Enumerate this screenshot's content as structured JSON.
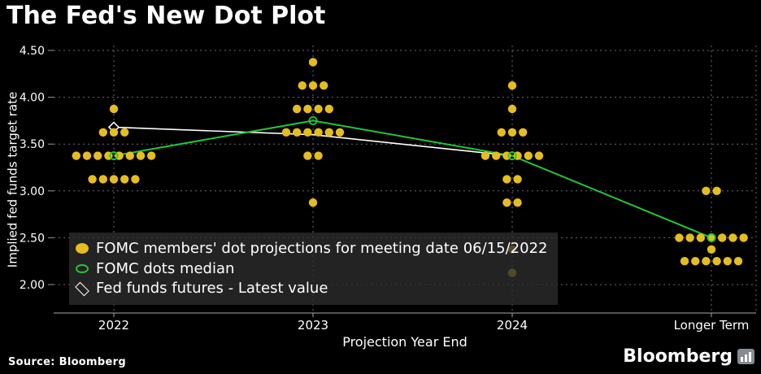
{
  "footer": {
    "source_label": "Source: Bloomberg",
    "brand": "Bloomberg",
    "brand_icon": "bar-chart-icon"
  },
  "chart_data": {
    "type": "scatter",
    "title": "The Fed's New Dot Plot",
    "xlabel": "Projection Year End",
    "ylabel": "Implied fed funds target rate",
    "categories": [
      "2022",
      "2023",
      "2024",
      "Longer Term"
    ],
    "yticks": [
      "4.50",
      "4.00",
      "3.50",
      "3.00",
      "2.50",
      "2.00"
    ],
    "ylim": [
      1.75,
      4.6
    ],
    "grid": "dashed horizontal and vertical gridlines on black background",
    "legend": {
      "position": "bottom-left overlay panel",
      "entries": [
        {
          "marker": "filled-circle",
          "color": "#e6bd20",
          "label": "FOMC members' dot projections for meeting date 06/15/2022"
        },
        {
          "marker": "open-circle",
          "color": "#1ec838",
          "label": "FOMC dots median"
        },
        {
          "marker": "open-diamond",
          "color": "#ffffff",
          "label": "Fed funds futures - Latest value"
        }
      ]
    },
    "dot_series": {
      "name": "FOMC members' dot projections for meeting date 06/15/2022",
      "color": "#e6bd20",
      "points": [
        {
          "category": "2022",
          "rate": 3.875,
          "count": 1
        },
        {
          "category": "2022",
          "rate": 3.625,
          "count": 3
        },
        {
          "category": "2022",
          "rate": 3.375,
          "count": 8
        },
        {
          "category": "2022",
          "rate": 3.125,
          "count": 5
        },
        {
          "category": "2023",
          "rate": 4.375,
          "count": 1
        },
        {
          "category": "2023",
          "rate": 4.125,
          "count": 3
        },
        {
          "category": "2023",
          "rate": 3.875,
          "count": 4
        },
        {
          "category": "2023",
          "rate": 3.625,
          "count": 6
        },
        {
          "category": "2023",
          "rate": 3.375,
          "count": 2
        },
        {
          "category": "2023",
          "rate": 2.875,
          "count": 1
        },
        {
          "category": "2024",
          "rate": 4.125,
          "count": 1
        },
        {
          "category": "2024",
          "rate": 3.875,
          "count": 1
        },
        {
          "category": "2024",
          "rate": 3.625,
          "count": 3
        },
        {
          "category": "2024",
          "rate": 3.375,
          "count": 6
        },
        {
          "category": "2024",
          "rate": 3.125,
          "count": 2
        },
        {
          "category": "2024",
          "rate": 2.875,
          "count": 2
        },
        {
          "category": "2024",
          "rate": 2.375,
          "count": 1
        },
        {
          "category": "2024",
          "rate": 2.125,
          "count": 1
        },
        {
          "category": "Longer Term",
          "rate": 3.0,
          "count": 2
        },
        {
          "category": "Longer Term",
          "rate": 2.5,
          "count": 7
        },
        {
          "category": "Longer Term",
          "rate": 2.375,
          "count": 1
        },
        {
          "category": "Longer Term",
          "rate": 2.25,
          "count": 6
        }
      ]
    },
    "median_series": {
      "name": "FOMC dots median",
      "color": "#1ec838",
      "categories": [
        "2022",
        "2023",
        "2024",
        "Longer Term"
      ],
      "values": [
        3.375,
        3.75,
        3.375,
        2.5
      ]
    },
    "futures_series": {
      "name": "Fed funds futures - Latest value",
      "color": "#ffffff",
      "categories": [
        "2022",
        "2023",
        "2024"
      ],
      "values": [
        3.68,
        3.6,
        3.375
      ]
    }
  }
}
